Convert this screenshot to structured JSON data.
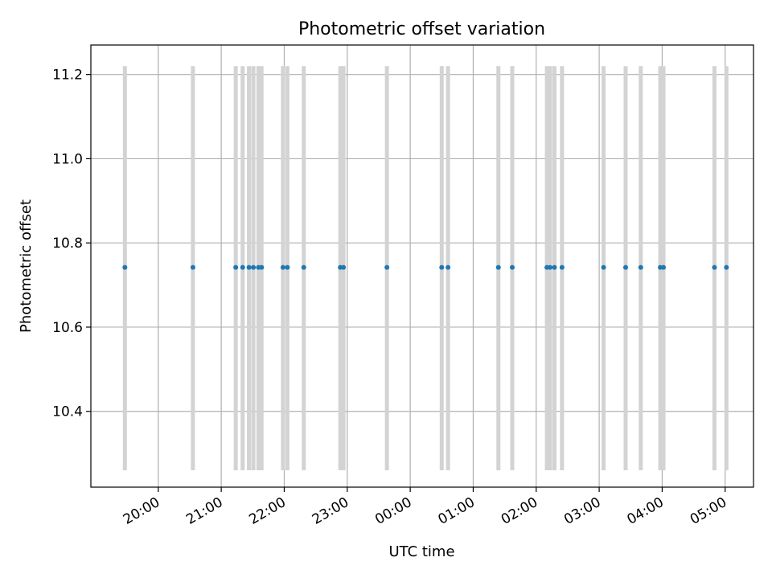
{
  "chart_data": {
    "type": "scatter",
    "title": "Photometric offset variation",
    "xlabel": "UTC time",
    "ylabel": "Photometric offset",
    "x_unit": "UTC time (hours after 00:00 of the first day; values above 24 fall on the next day)",
    "xlim": [
      18.93,
      29.45
    ],
    "ylim": [
      10.22,
      11.27
    ],
    "x_ticks": [
      {
        "value": 20,
        "label": "20:00"
      },
      {
        "value": 21,
        "label": "21:00"
      },
      {
        "value": 22,
        "label": "22:00"
      },
      {
        "value": 23,
        "label": "23:00"
      },
      {
        "value": 24,
        "label": "00:00"
      },
      {
        "value": 25,
        "label": "01:00"
      },
      {
        "value": 26,
        "label": "02:00"
      },
      {
        "value": 27,
        "label": "03:00"
      },
      {
        "value": 28,
        "label": "04:00"
      },
      {
        "value": 29,
        "label": "05:00"
      }
    ],
    "y_ticks": [
      {
        "value": 10.4,
        "label": "10.4"
      },
      {
        "value": 10.6,
        "label": "10.6"
      },
      {
        "value": 10.8,
        "label": "10.8"
      },
      {
        "value": 11.0,
        "label": "11.0"
      },
      {
        "value": 11.2,
        "label": "11.2"
      }
    ],
    "grid": true,
    "series": [
      {
        "color": "#1f77b4",
        "y_value": 10.742,
        "x": [
          19.47,
          20.55,
          21.23,
          21.34,
          21.44,
          21.51,
          21.59,
          21.64,
          21.98,
          22.05,
          22.31,
          22.89,
          22.94,
          23.63,
          24.5,
          24.6,
          25.4,
          25.62,
          26.17,
          26.22,
          26.29,
          26.41,
          27.07,
          27.42,
          27.66,
          27.97,
          28.02,
          28.83,
          29.02
        ],
        "y_error_low": 10.26,
        "y_error_high": 11.22,
        "error_color": "#d3d3d3"
      }
    ]
  }
}
